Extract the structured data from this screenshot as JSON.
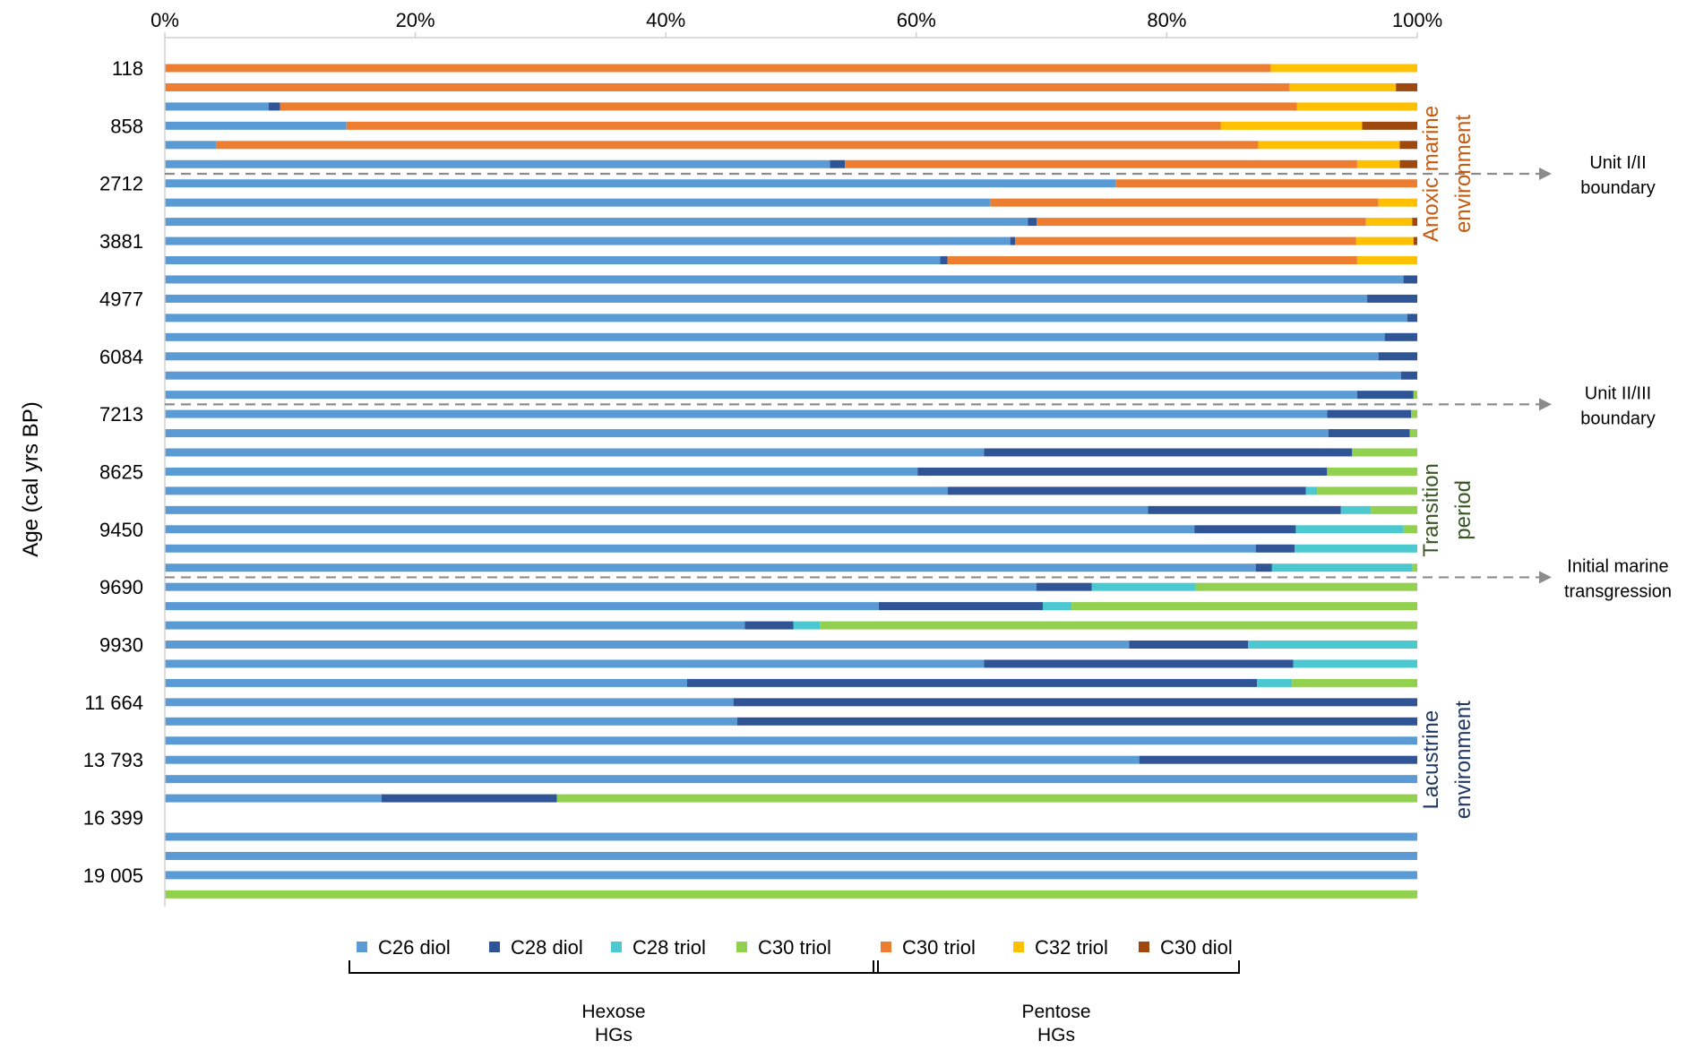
{
  "chart_data": {
    "type": "bar",
    "stacked": "percent",
    "orientation": "horizontal",
    "ylabel": "Age (cal yrs BP)",
    "x_ticks": [
      "0%",
      "20%",
      "40%",
      "60%",
      "80%",
      "100%"
    ],
    "xlim": [
      0,
      100
    ],
    "grid": false,
    "legend_position": "bottom",
    "series": [
      {
        "name": "C26 diol",
        "color": "#5B9BD5"
      },
      {
        "name": "C28 diol",
        "color": "#2F5597"
      },
      {
        "name": "C28 triol",
        "color": "#4BC8D0"
      },
      {
        "name": "C30 triol",
        "color": "#92D050"
      },
      {
        "name": "C30 triol",
        "color": "#ED7D31"
      },
      {
        "name": "C32 triol",
        "color": "#FFC000"
      },
      {
        "name": "C30 diol",
        "color": "#9E480E"
      }
    ],
    "age_labels": [
      {
        "row": 0,
        "text": "118"
      },
      {
        "row": 3,
        "text": "858"
      },
      {
        "row": 6,
        "text": "2712"
      },
      {
        "row": 9,
        "text": "3881"
      },
      {
        "row": 12,
        "text": "4977"
      },
      {
        "row": 15,
        "text": "6084"
      },
      {
        "row": 18,
        "text": "7213"
      },
      {
        "row": 21,
        "text": "8625"
      },
      {
        "row": 24,
        "text": "9450"
      },
      {
        "row": 27,
        "text": "9690"
      },
      {
        "row": 30,
        "text": "9930"
      },
      {
        "row": 33,
        "text": "11 664"
      },
      {
        "row": 36,
        "text": "13 793"
      },
      {
        "row": 39,
        "text": "16 399"
      },
      {
        "row": 42,
        "text": "19 005"
      }
    ],
    "rows": [
      [
        0,
        0,
        0,
        0,
        88.3,
        11.7,
        0
      ],
      [
        0,
        0,
        0,
        0,
        89.8,
        8.5,
        1.7
      ],
      [
        8.3,
        0.9,
        0,
        0,
        81.2,
        9.6,
        0
      ],
      [
        14.5,
        0,
        0,
        0,
        69.8,
        11.3,
        4.4
      ],
      [
        4.1,
        0,
        0,
        0,
        83.2,
        11.3,
        1.4
      ],
      [
        53.1,
        1.2,
        0,
        0,
        40.9,
        3.4,
        1.4
      ],
      [
        75.9,
        0,
        0,
        0,
        24.1,
        0,
        0
      ],
      [
        65.9,
        0,
        0,
        0,
        31.0,
        3.1,
        0
      ],
      [
        68.9,
        0.7,
        0,
        0,
        26.3,
        3.7,
        0.4
      ],
      [
        67.5,
        0.4,
        0,
        0,
        27.2,
        4.6,
        0.3
      ],
      [
        61.9,
        0.6,
        0,
        0,
        32.7,
        4.8,
        0
      ],
      [
        98.9,
        1.1,
        0,
        0,
        0,
        0,
        0
      ],
      [
        96.0,
        4.0,
        0,
        0,
        0,
        0,
        0
      ],
      [
        99.2,
        0.8,
        0,
        0,
        0,
        0,
        0
      ],
      [
        97.4,
        2.6,
        0,
        0,
        0,
        0,
        0
      ],
      [
        96.9,
        3.1,
        0,
        0,
        0,
        0,
        0
      ],
      [
        98.7,
        1.3,
        0,
        0,
        0,
        0,
        0
      ],
      [
        95.2,
        4.5,
        0,
        0.3,
        0,
        0,
        0
      ],
      [
        92.8,
        6.7,
        0,
        0.5,
        0,
        0,
        0
      ],
      [
        92.9,
        6.5,
        0,
        0.6,
        0,
        0,
        0
      ],
      [
        65.4,
        29.4,
        0,
        5.2,
        0,
        0,
        0
      ],
      [
        60.1,
        32.7,
        0,
        7.2,
        0,
        0,
        0
      ],
      [
        62.5,
        28.6,
        0.9,
        8.0,
        0,
        0,
        0
      ],
      [
        78.5,
        15.4,
        2.4,
        3.7,
        0,
        0,
        0
      ],
      [
        82.2,
        8.1,
        8.6,
        1.1,
        0,
        0,
        0
      ],
      [
        87.1,
        3.1,
        9.8,
        0,
        0,
        0,
        0
      ],
      [
        87.1,
        1.3,
        11.2,
        0.4,
        0,
        0,
        0
      ],
      [
        69.6,
        4.4,
        8.3,
        17.7,
        0,
        0,
        0
      ],
      [
        57.0,
        13.1,
        2.3,
        27.6,
        0,
        0,
        0
      ],
      [
        46.3,
        3.9,
        2.1,
        47.7,
        0,
        0,
        0
      ],
      [
        77.0,
        9.5,
        13.5,
        0,
        0,
        0,
        0
      ],
      [
        65.4,
        24.7,
        9.9,
        0,
        0,
        0,
        0
      ],
      [
        41.7,
        45.5,
        2.8,
        10.0,
        0,
        0,
        0
      ],
      [
        45.4,
        54.6,
        0,
        0,
        0,
        0,
        0
      ],
      [
        45.7,
        54.3,
        0,
        0,
        0,
        0,
        0
      ],
      [
        100,
        0,
        0,
        0,
        0,
        0,
        0
      ],
      [
        77.8,
        22.2,
        0,
        0,
        0,
        0,
        0
      ],
      [
        100,
        0,
        0,
        0,
        0,
        0,
        0
      ],
      [
        17.3,
        14.0,
        0,
        68.7,
        0,
        0,
        0
      ],
      null,
      [
        100,
        0,
        0,
        0,
        0,
        0,
        0
      ],
      [
        100,
        0,
        0,
        0,
        0,
        0,
        0
      ],
      [
        100,
        0,
        0,
        0,
        0,
        0,
        0
      ],
      [
        0,
        0,
        0,
        100,
        0,
        0,
        0
      ]
    ],
    "boundaries": [
      {
        "after_row": 5,
        "label_lines": [
          "Unit I/II",
          "boundary"
        ]
      },
      {
        "after_row": 17,
        "label_lines": [
          "Unit II/III",
          "boundary"
        ]
      },
      {
        "after_row": 26,
        "label_lines": [
          "Initial marine",
          "transgression"
        ]
      }
    ],
    "periods": [
      {
        "lines": [
          "Anoxic marine",
          "environment"
        ],
        "color": "#C55A11",
        "from_row": 1,
        "to_row": 10
      },
      {
        "lines": [
          "Transition",
          "period"
        ],
        "color": "#375623",
        "from_row": 20,
        "to_row": 26
      },
      {
        "lines": [
          "Lacustrine",
          "environment"
        ],
        "color": "#1F3864",
        "from_row": 32,
        "to_row": 40
      }
    ],
    "groups": [
      {
        "lines": [
          "Hexose",
          "HGs"
        ],
        "series_from": 0,
        "series_to": 3
      },
      {
        "lines": [
          "Pentose",
          "HGs"
        ],
        "series_from": 4,
        "series_to": 6
      }
    ]
  }
}
